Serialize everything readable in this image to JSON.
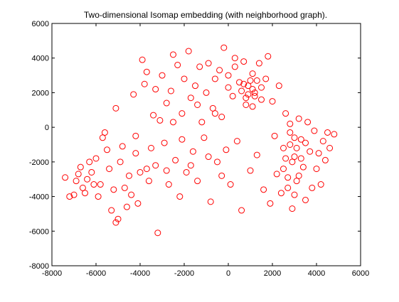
{
  "window": {
    "title": ""
  },
  "chart_data": {
    "type": "scatter",
    "title": "Two-dimensional Isomap embedding (with neighborhood graph).",
    "xlabel": "",
    "ylabel": "",
    "xlim": [
      -8000,
      6000
    ],
    "ylim": [
      -8000,
      6000
    ],
    "xticks": [
      -8000,
      -6000,
      -4000,
      -2000,
      0,
      2000,
      4000,
      6000
    ],
    "yticks": [
      -8000,
      -6000,
      -4000,
      -2000,
      0,
      2000,
      4000,
      6000
    ],
    "xtick_labels": [
      "-8000",
      "-6000",
      "-4000",
      "-2000",
      "0",
      "2000",
      "4000",
      "6000"
    ],
    "ytick_labels": [
      "-8000",
      "-6000",
      "-4000",
      "-2000",
      "0",
      "2000",
      "4000",
      "6000"
    ],
    "grid": false,
    "legend": "none",
    "marker": "open circle",
    "series": [
      {
        "color": "#ff0000",
        "points": [
          [
            -7400,
            -2900
          ],
          [
            -7200,
            -4000
          ],
          [
            -7000,
            -3900
          ],
          [
            -6900,
            -3100
          ],
          [
            -6800,
            -2700
          ],
          [
            -6700,
            -2300
          ],
          [
            -6600,
            -3500
          ],
          [
            -6500,
            -3800
          ],
          [
            -6400,
            -3000
          ],
          [
            -6300,
            -2000
          ],
          [
            -6200,
            -2600
          ],
          [
            -6100,
            -3300
          ],
          [
            -6000,
            -1800
          ],
          [
            -5900,
            -4000
          ],
          [
            -5800,
            -3300
          ],
          [
            -5700,
            -600
          ],
          [
            -5600,
            -300
          ],
          [
            -5500,
            -1300
          ],
          [
            -5400,
            -2400
          ],
          [
            -5300,
            -4800
          ],
          [
            -5200,
            -3600
          ],
          [
            -5100,
            -5500
          ],
          [
            -5000,
            -5300
          ],
          [
            -4900,
            -2000
          ],
          [
            -4800,
            -1100
          ],
          [
            -4700,
            -3500
          ],
          [
            -4600,
            -4600
          ],
          [
            -4500,
            -2800
          ],
          [
            -4400,
            -3900
          ],
          [
            -4300,
            1900
          ],
          [
            -4200,
            -500
          ],
          [
            -4100,
            -4400
          ],
          [
            -4000,
            -2600
          ],
          [
            -3900,
            3900
          ],
          [
            -3800,
            2500
          ],
          [
            -3700,
            3200
          ],
          [
            -3600,
            -3100
          ],
          [
            -3500,
            -1200
          ],
          [
            -3400,
            700
          ],
          [
            -3300,
            -2200
          ],
          [
            -3200,
            -6100
          ],
          [
            -3100,
            400
          ],
          [
            -3000,
            3000
          ],
          [
            -2900,
            -900
          ],
          [
            -2800,
            1400
          ],
          [
            -2700,
            -3300
          ],
          [
            -2600,
            2100
          ],
          [
            -2500,
            4200
          ],
          [
            -2400,
            -1900
          ],
          [
            -2300,
            3600
          ],
          [
            -2200,
            -4000
          ],
          [
            -2100,
            800
          ],
          [
            -2000,
            2800
          ],
          [
            -1900,
            -2600
          ],
          [
            -1800,
            4400
          ],
          [
            -1700,
            1700
          ],
          [
            -1600,
            -1400
          ],
          [
            -1500,
            2400
          ],
          [
            -1400,
            -3100
          ],
          [
            -1300,
            3500
          ],
          [
            -1200,
            300
          ],
          [
            -1100,
            -600
          ],
          [
            -1000,
            2000
          ],
          [
            -900,
            3700
          ],
          [
            -800,
            -4300
          ],
          [
            -700,
            1100
          ],
          [
            -600,
            2800
          ],
          [
            -500,
            -2000
          ],
          [
            -400,
            3300
          ],
          [
            -300,
            600
          ],
          [
            -200,
            4600
          ],
          [
            -100,
            -1300
          ],
          [
            0,
            3000
          ],
          [
            100,
            -3300
          ],
          [
            200,
            1800
          ],
          [
            300,
            3500
          ],
          [
            400,
            -800
          ],
          [
            500,
            2600
          ],
          [
            600,
            -4800
          ],
          [
            700,
            3800
          ],
          [
            800,
            1300
          ],
          [
            900,
            2400
          ],
          [
            1000,
            -2500
          ],
          [
            1100,
            3100
          ],
          [
            1200,
            2000
          ],
          [
            1300,
            -1600
          ],
          [
            1400,
            3700
          ],
          [
            1500,
            1600
          ],
          [
            1600,
            -3600
          ],
          [
            1700,
            2800
          ],
          [
            1800,
            4100
          ],
          [
            1900,
            -4400
          ],
          [
            2000,
            1500
          ],
          [
            2100,
            -500
          ],
          [
            2200,
            -2700
          ],
          [
            2300,
            2400
          ],
          [
            2400,
            -3800
          ],
          [
            2500,
            -1200
          ],
          [
            2600,
            800
          ],
          [
            2700,
            -2900
          ],
          [
            2800,
            -300
          ],
          [
            2900,
            -4700
          ],
          [
            3000,
            -1700
          ],
          [
            3100,
            -3100
          ],
          [
            3200,
            500
          ],
          [
            3300,
            -700
          ],
          [
            3400,
            -2300
          ],
          [
            3500,
            -4200
          ],
          [
            3600,
            300
          ],
          [
            3700,
            -1400
          ],
          [
            3800,
            -3500
          ],
          [
            3900,
            -200
          ],
          [
            4000,
            -2400
          ],
          [
            4100,
            -1500
          ],
          [
            4200,
            -3300
          ],
          [
            4300,
            -800
          ],
          [
            4400,
            -1900
          ],
          [
            4500,
            -300
          ],
          [
            4600,
            -1200
          ],
          [
            4800,
            -400
          ],
          [
            -5100,
            1100
          ],
          [
            -4200,
            -1500
          ],
          [
            -3700,
            -2400
          ],
          [
            -3300,
            2200
          ],
          [
            -2800,
            -2500
          ],
          [
            -2500,
            300
          ],
          [
            -2100,
            -700
          ],
          [
            -1700,
            -2200
          ],
          [
            -1400,
            1300
          ],
          [
            -900,
            -1700
          ],
          [
            -600,
            800
          ],
          [
            -300,
            -2800
          ],
          [
            0,
            2300
          ],
          [
            300,
            4000
          ],
          [
            600,
            2100
          ],
          [
            900,
            1900
          ],
          [
            1100,
            1200
          ],
          [
            1300,
            2700
          ],
          [
            700,
            2500
          ],
          [
            1000,
            2700
          ],
          [
            1200,
            1800
          ],
          [
            1500,
            2300
          ],
          [
            800,
            1700
          ],
          [
            1100,
            2200
          ],
          [
            2600,
            -1800
          ],
          [
            2800,
            -1000
          ],
          [
            3000,
            -600
          ],
          [
            3200,
            -2800
          ],
          [
            2900,
            -2000
          ],
          [
            3100,
            -1200
          ],
          [
            2700,
            -3500
          ],
          [
            3300,
            -1800
          ],
          [
            3500,
            -900
          ],
          [
            2500,
            -2400
          ],
          [
            3000,
            -3900
          ],
          [
            2800,
            200
          ]
        ]
      }
    ]
  }
}
